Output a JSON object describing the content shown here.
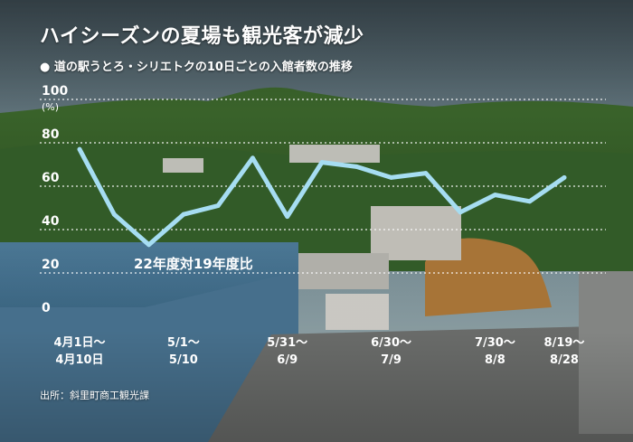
{
  "title": "ハイシーズンの夏場も観光客が減少",
  "subtitle": "● 道の駅うとろ・シリエトクの10日ごとの入館者数の推移",
  "source": "出所：斜里町商工観光課",
  "colors": {
    "line": "#a6ddf2",
    "text": "#ffffff",
    "grid": "#ffffff"
  },
  "chart_data": {
    "type": "line",
    "title": "ハイシーズンの夏場も観光客が減少",
    "ylabel": "(%)",
    "ylim": [
      0,
      100
    ],
    "yticks": [
      "0",
      "20",
      "40",
      "60",
      "80",
      "100"
    ],
    "grid": true,
    "annotation": "22年度対19年度比",
    "xtick_labels": [
      [
        "4月1日〜",
        "4月10日"
      ],
      [
        "5/1〜",
        "5/10"
      ],
      [
        "5/31〜",
        "6/9"
      ],
      [
        "6/30〜",
        "7/9"
      ],
      [
        "7/30〜",
        "8/8"
      ],
      [
        "8/19〜",
        "8/28"
      ]
    ],
    "x": [
      "4/1",
      "4/11",
      "4/21",
      "5/1",
      "5/11",
      "5/21",
      "5/31",
      "6/10",
      "6/20",
      "6/30",
      "7/10",
      "7/20",
      "7/30",
      "8/9",
      "8/19"
    ],
    "values": [
      77,
      47,
      33,
      47,
      51,
      73,
      46,
      71,
      69,
      64,
      66,
      48,
      56,
      53,
      64
    ],
    "xtick_indices": [
      0,
      3,
      6,
      9,
      12,
      14
    ]
  }
}
